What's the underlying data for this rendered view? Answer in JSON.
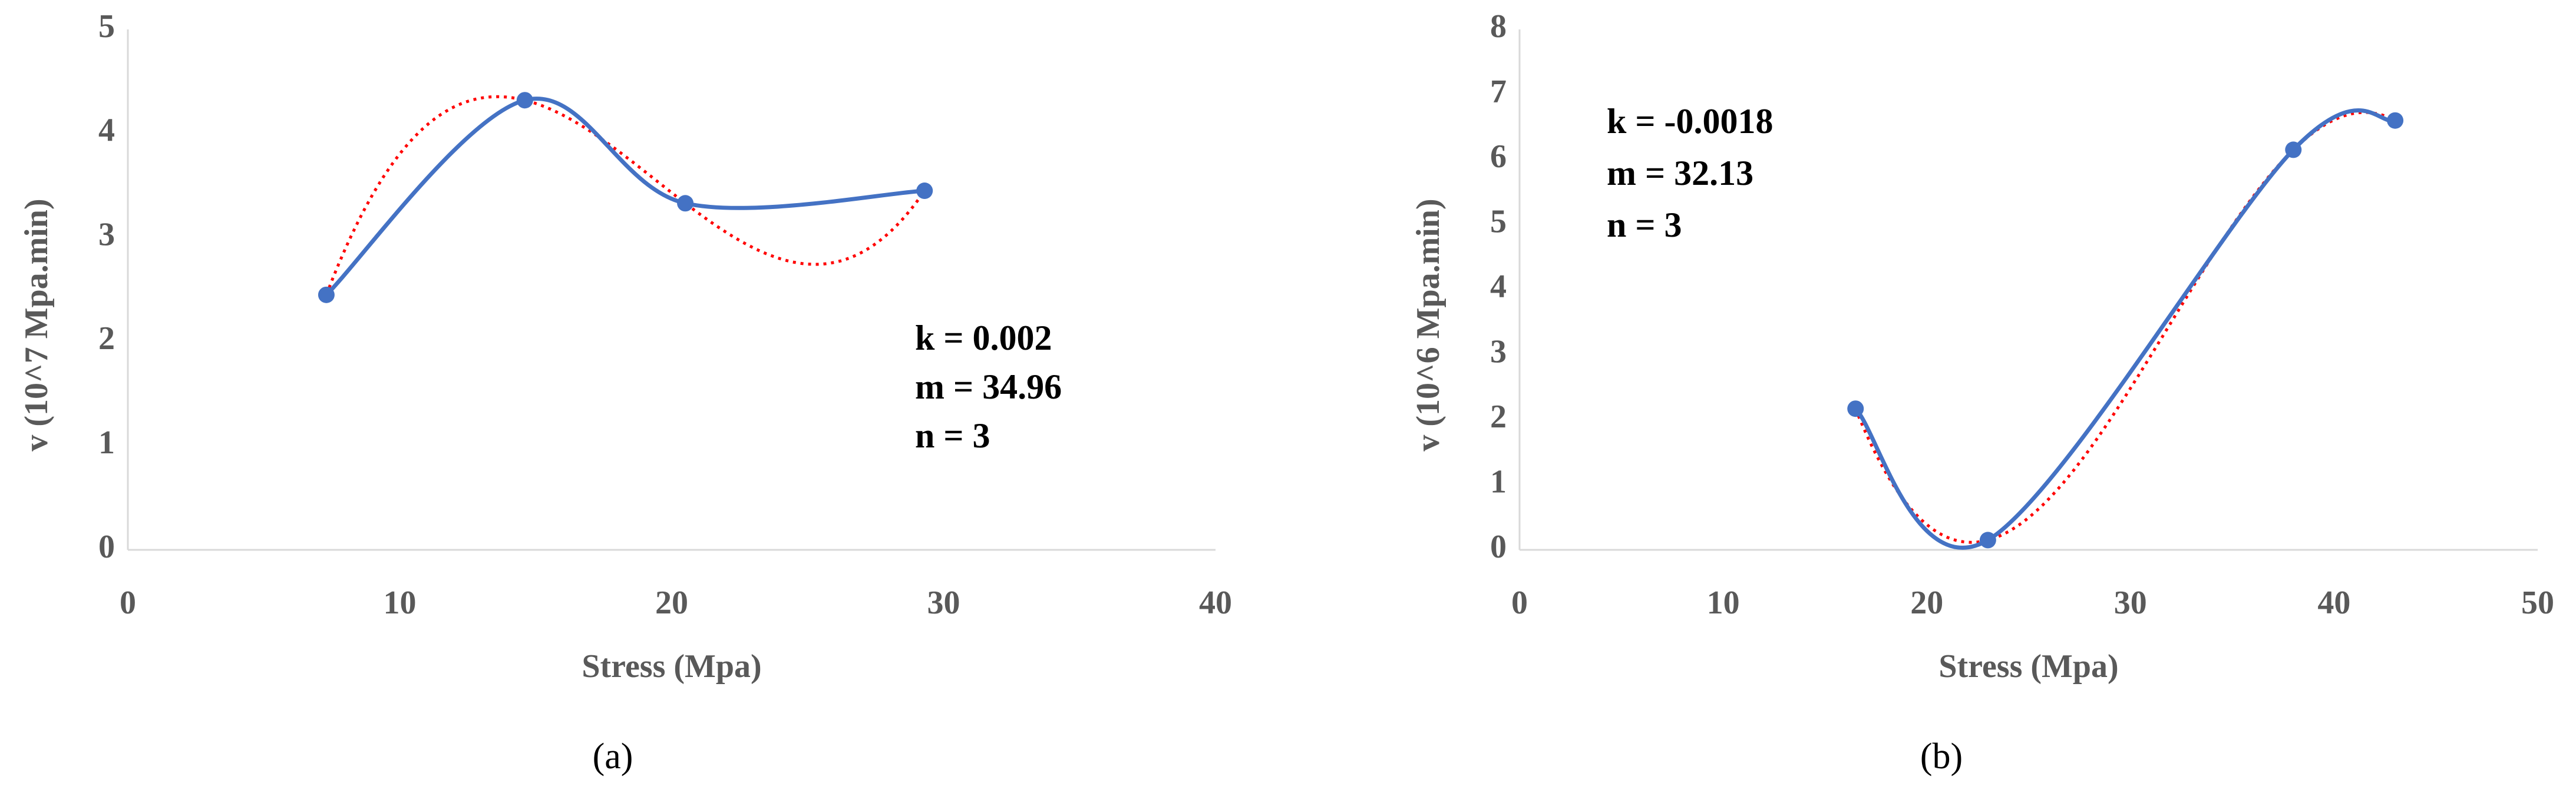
{
  "chart_data": [
    {
      "type": "scatter",
      "caption": "(a)",
      "x_label": "Stress (Mpa)",
      "y_label": "v (10^7 Mpa.min)",
      "x": [
        7.3,
        14.6,
        20.5,
        29.3
      ],
      "values": [
        2.45,
        4.32,
        3.33,
        3.45
      ],
      "color": "#4472c4",
      "trendline_color": "#ff0000",
      "xlim": [
        0,
        40
      ],
      "xticks": [
        0,
        10,
        20,
        30,
        40
      ],
      "ylim": [
        0,
        5
      ],
      "yticks": [
        0,
        1,
        2,
        3,
        4,
        5
      ],
      "annotations": [
        "k = 0.002",
        "m = 34.96",
        "n = 3"
      ]
    },
    {
      "type": "scatter",
      "caption": "(b)",
      "x_label": "Stress (Mpa)",
      "y_label": "v (10^6 Mpa.min)",
      "x": [
        16.5,
        23,
        38,
        43
      ],
      "values": [
        2.17,
        0.15,
        6.15,
        6.6
      ],
      "color": "#4472c4",
      "trendline_color": "#ff0000",
      "xlim": [
        0,
        50
      ],
      "xticks": [
        0,
        10,
        20,
        30,
        40,
        50
      ],
      "ylim": [
        0,
        8
      ],
      "yticks": [
        0,
        1,
        2,
        3,
        4,
        5,
        6,
        7,
        8
      ],
      "annotations": [
        "k = -0.0018",
        "m = 32.13",
        "n = 3"
      ]
    }
  ]
}
